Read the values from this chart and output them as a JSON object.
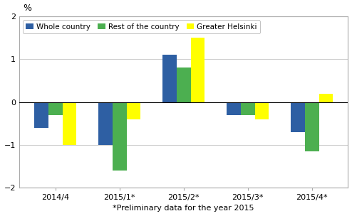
{
  "categories": [
    "2014/4",
    "2015/1*",
    "2015/2*",
    "2015/3*",
    "2015/4*"
  ],
  "series": {
    "Whole country": [
      -0.6,
      -1.0,
      1.1,
      -0.3,
      -0.7
    ],
    "Rest of the country": [
      -0.3,
      -1.6,
      0.8,
      -0.3,
      -1.15
    ],
    "Greater Helsinki": [
      -1.0,
      -0.4,
      1.5,
      -0.4,
      0.2
    ]
  },
  "colors": {
    "Whole country": "#2E5FA3",
    "Rest of the country": "#4CAF50",
    "Greater Helsinki": "#FFFF00"
  },
  "ylim": [
    -2,
    2
  ],
  "yticks": [
    -2,
    -1,
    0,
    1,
    2
  ],
  "ylabel": "%",
  "xlabel": "*Preliminary data for the year 2015",
  "bar_width": 0.22,
  "background_color": "#ffffff",
  "grid_color": "#cccccc",
  "legend_fontsize": 7.5,
  "axis_fontsize": 8,
  "ylabel_fontsize": 9
}
